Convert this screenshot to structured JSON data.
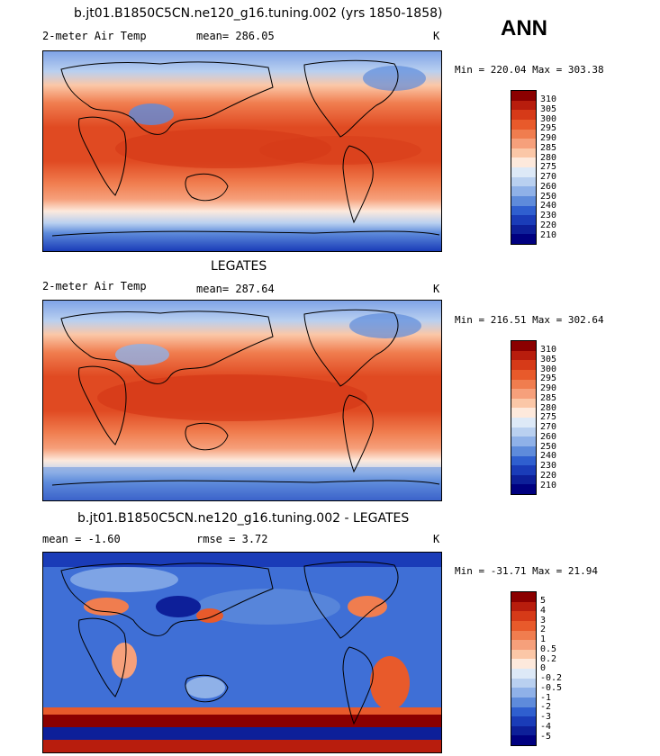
{
  "season": "ANN",
  "panels": [
    {
      "title": "b.jt01.B1850C5CN.ne120_g16.tuning.002 (yrs 1850-1858)",
      "variable": "2-meter Air Temp",
      "left_label": "mean=",
      "left_value": "286.05",
      "right_label": "",
      "right_value": "",
      "units": "K",
      "min_label": "Min =",
      "min_value": "220.04",
      "max_label": "Max =",
      "max_value": "303.38",
      "colorbar_labels": [
        "310",
        "305",
        "300",
        "295",
        "290",
        "285",
        "280",
        "275",
        "270",
        "260",
        "250",
        "240",
        "230",
        "220",
        "210"
      ],
      "colorbar_colors": [
        "#8b0000",
        "#b81d0d",
        "#d63a18",
        "#e85a2b",
        "#f07d4f",
        "#f6a07b",
        "#fbc7a7",
        "#fde9dc",
        "#dde9f7",
        "#b9d0f0",
        "#8fb1e8",
        "#5e8bdb",
        "#2f5fcf",
        "#1a3cb8",
        "#0d1f99",
        "#000080"
      ]
    },
    {
      "title": "LEGATES",
      "variable": "2-meter Air Temp",
      "left_label": "mean=",
      "left_value": "287.64",
      "right_label": "",
      "right_value": "",
      "units": "K",
      "min_label": "Min =",
      "min_value": "216.51",
      "max_label": "Max =",
      "max_value": "302.64",
      "colorbar_labels": [
        "310",
        "305",
        "300",
        "295",
        "290",
        "285",
        "280",
        "275",
        "270",
        "260",
        "250",
        "240",
        "230",
        "220",
        "210"
      ],
      "colorbar_colors": [
        "#8b0000",
        "#b81d0d",
        "#d63a18",
        "#e85a2b",
        "#f07d4f",
        "#f6a07b",
        "#fbc7a7",
        "#fde9dc",
        "#dde9f7",
        "#b9d0f0",
        "#8fb1e8",
        "#5e8bdb",
        "#2f5fcf",
        "#1a3cb8",
        "#0d1f99",
        "#000080"
      ]
    },
    {
      "title": "b.jt01.B1850C5CN.ne120_g16.tuning.002 - LEGATES",
      "variable": "",
      "left_label": "mean =",
      "left_value": "-1.60",
      "right_label": "rmse =",
      "right_value": "3.72",
      "units": "K",
      "min_label": "Min =",
      "min_value": "-31.71",
      "max_label": "Max =",
      "max_value": "21.94",
      "colorbar_labels": [
        "5",
        "4",
        "3",
        "2",
        "1",
        "0.5",
        "0.2",
        "0",
        "-0.2",
        "-0.5",
        "-1",
        "-2",
        "-3",
        "-4",
        "-5"
      ],
      "colorbar_colors": [
        "#8b0000",
        "#b81d0d",
        "#d63a18",
        "#e85a2b",
        "#f07d4f",
        "#f6a07b",
        "#fbc7a7",
        "#fde9dc",
        "#dde9f7",
        "#b9d0f0",
        "#8fb1e8",
        "#5e8bdb",
        "#2f5fcf",
        "#1a3cb8",
        "#0d1f99",
        "#000080"
      ]
    }
  ]
}
